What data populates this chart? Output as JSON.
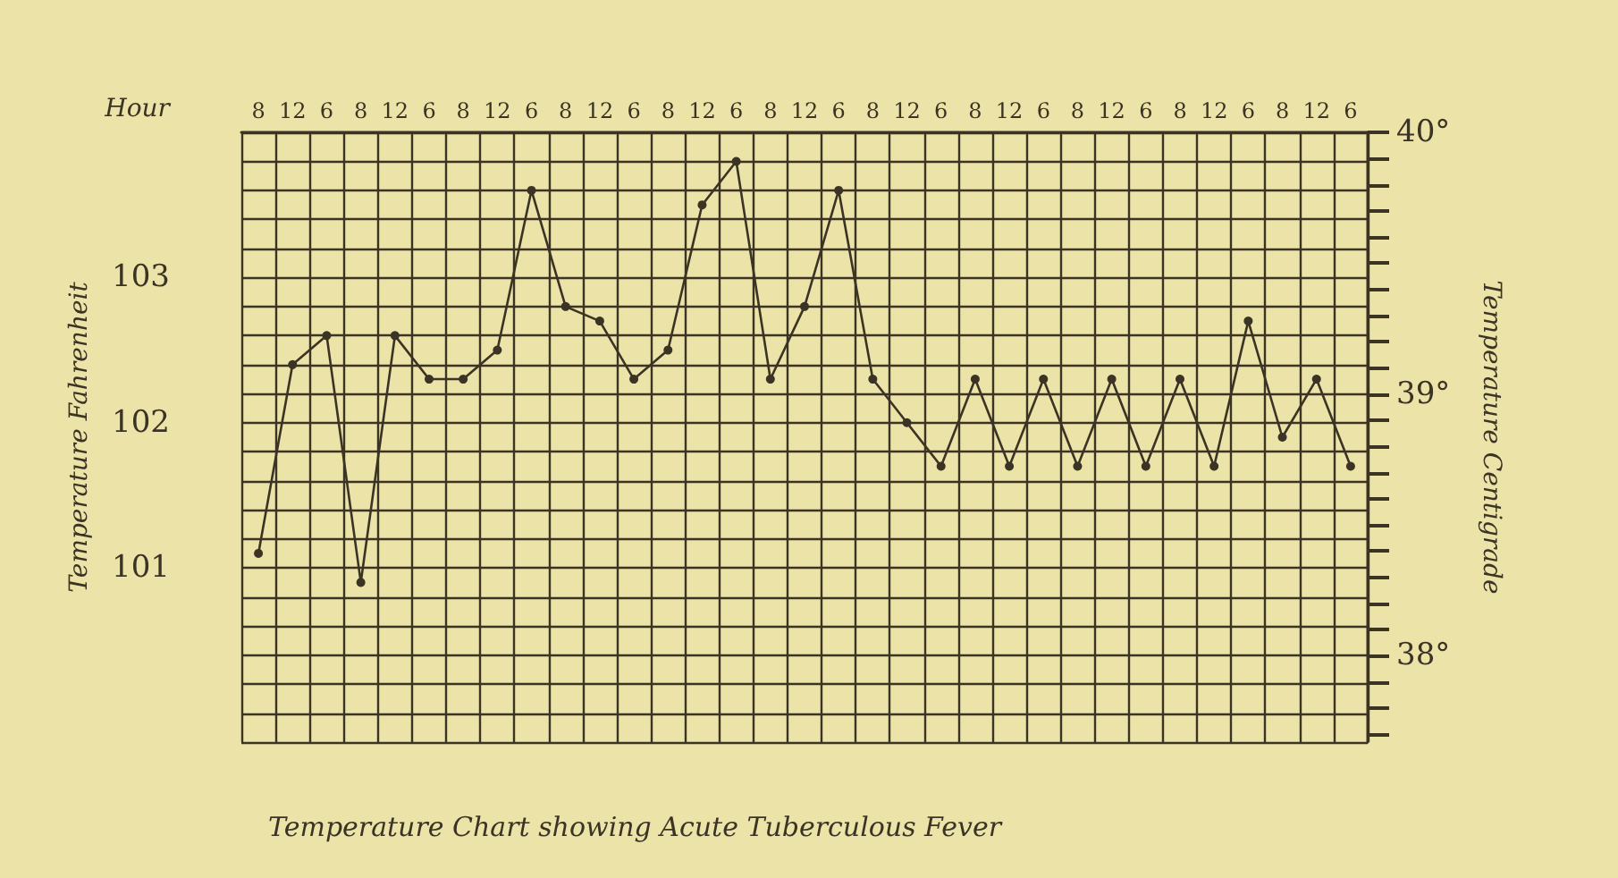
{
  "chart_data": {
    "type": "line",
    "title": "Temperature Chart showing Acute Tuberculous Fever",
    "xlabel": "Hour",
    "ylabel": "Temperature Fahrenheit",
    "y2label": "Temperature Centigrade",
    "categories": [
      "8",
      "12",
      "6",
      "8",
      "12",
      "6",
      "8",
      "12",
      "6",
      "8",
      "12",
      "6",
      "8",
      "12",
      "6",
      "8",
      "12",
      "6",
      "8",
      "12",
      "6",
      "8",
      "12",
      "6",
      "8",
      "12",
      "6",
      "8",
      "12",
      "6",
      "8",
      "12",
      "6"
    ],
    "series": [
      {
        "color": "#3b3324",
        "values": [
          101.1,
          102.4,
          102.6,
          100.9,
          102.6,
          102.3,
          102.3,
          102.5,
          103.6,
          102.8,
          102.7,
          102.3,
          102.5,
          103.5,
          103.8,
          102.3,
          102.8,
          103.6,
          102.3,
          102.0,
          101.7,
          102.3,
          101.7,
          102.3,
          101.7,
          102.3,
          101.7,
          102.3,
          101.7,
          102.7,
          101.9,
          102.3,
          101.7
        ]
      }
    ],
    "ylim": [
      99.8,
      104.0
    ],
    "yticks": [
      {
        "value": 99.8,
        "label": null
      },
      {
        "value": 100.0,
        "label": null
      },
      {
        "value": 100.2,
        "label": null
      },
      {
        "value": 100.4,
        "label": null
      },
      {
        "value": 100.6,
        "label": null
      },
      {
        "value": 100.8,
        "label": null
      },
      101,
      {
        "value": 101.2,
        "label": null
      },
      {
        "value": 101.4,
        "label": null
      },
      {
        "value": 101.6,
        "label": null
      },
      {
        "value": 101.8,
        "label": null
      },
      102,
      {
        "value": 102.2,
        "label": null
      },
      {
        "value": 102.4,
        "label": null
      },
      {
        "value": 102.6,
        "label": null
      },
      {
        "value": 102.8,
        "label": null
      },
      103,
      {
        "value": 103.2,
        "label": null
      },
      {
        "value": 103.4,
        "label": null
      },
      {
        "value": 103.6,
        "label": null
      },
      {
        "value": 103.8,
        "label": null
      },
      {
        "value": 104.0,
        "label": null
      }
    ],
    "y2lim": [
      37.67,
      40
    ],
    "y2ticks": [
      {
        "value": 37.7,
        "label": null
      },
      {
        "value": 37.8,
        "label": null
      },
      {
        "value": 37.9,
        "label": null
      },
      {
        "value": 38,
        "label": "38°"
      },
      {
        "value": 38.1,
        "label": null
      },
      {
        "value": 38.2,
        "label": null
      },
      {
        "value": 38.3,
        "label": null
      },
      {
        "value": 38.4,
        "label": null
      },
      {
        "value": 38.5,
        "label": null
      },
      {
        "value": 38.6,
        "label": null
      },
      {
        "value": 38.7,
        "label": null
      },
      {
        "value": 38.8,
        "label": null
      },
      {
        "value": 38.9,
        "label": null
      },
      {
        "value": 39,
        "label": "39°"
      },
      {
        "value": 39.1,
        "label": null
      },
      {
        "value": 39.2,
        "label": null
      },
      {
        "value": 39.3,
        "label": null
      },
      {
        "value": 39.4,
        "label": null
      },
      {
        "value": 39.5,
        "label": null
      },
      {
        "value": 39.6,
        "label": null
      },
      {
        "value": 39.7,
        "label": null
      },
      {
        "value": 39.8,
        "label": null
      },
      {
        "value": 39.9,
        "label": null
      },
      {
        "value": 40,
        "label": "40°"
      }
    ],
    "grid": true,
    "marker": "circle",
    "line_style": "solid"
  }
}
